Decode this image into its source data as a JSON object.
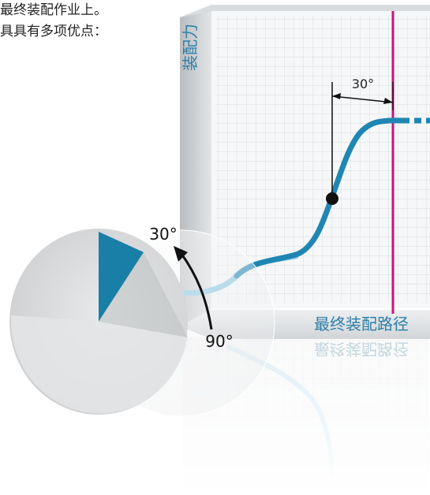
{
  "intro_text": {
    "line1": "最终装配作业上。",
    "line2": "具具有多项优点："
  },
  "diagram": {
    "y_axis_label": "装配力",
    "x_axis_label": "最终装配路径",
    "angle_interval_label": "30°",
    "dial_angle_label": "30°",
    "dial_base_label": "90°",
    "colors": {
      "curve": "#1f86b3",
      "curve_light": "#8cc9e2",
      "limit_line": "#c8157f",
      "dial_sector": "#1a7fa6",
      "panel": "#f2f3f4"
    }
  }
}
